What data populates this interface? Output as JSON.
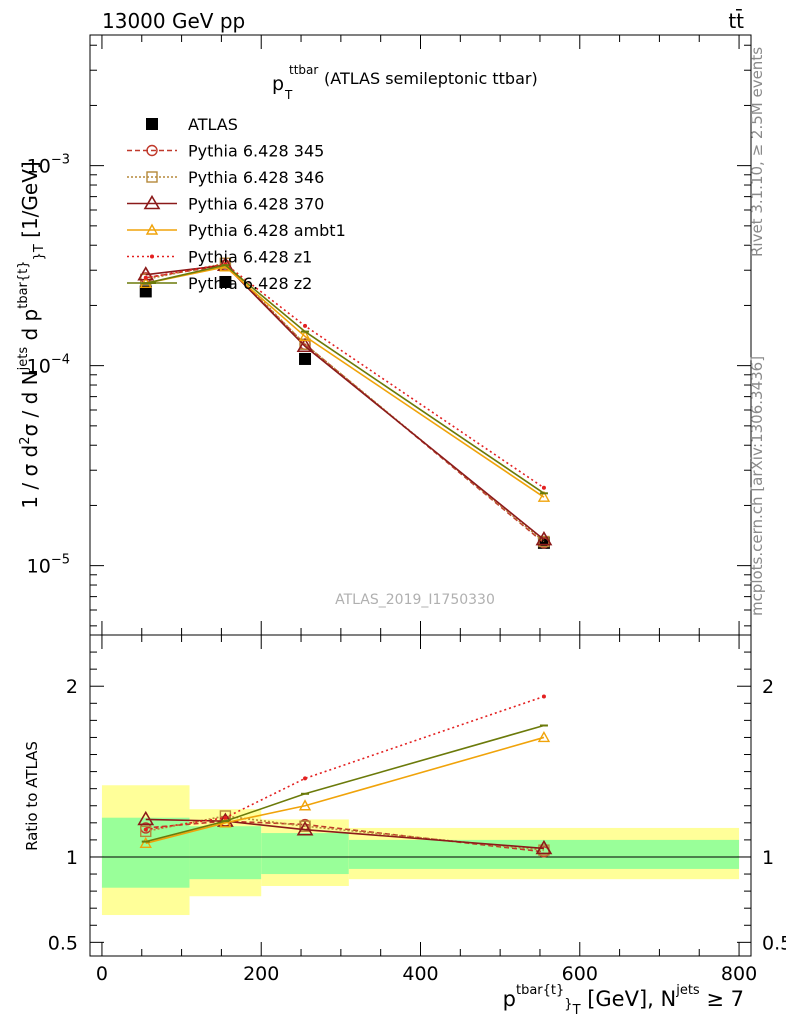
{
  "header": {
    "left": "13000 GeV pp",
    "right": "tt̄"
  },
  "side_labels": {
    "rivet": "Rivet 3.1.10, ≥ 2.5M events",
    "mcplots": "mcplots.cern.ch [arXiv:1306.3436]"
  },
  "watermark": "ATLAS_2019_I1750330",
  "colors": {
    "data": "#000000",
    "p345": "#c0392b",
    "p346": "#b5893a",
    "p370": "#8b1a1a",
    "ambt1": "#f0a30a",
    "z1": "#e32020",
    "z2": "#6b7a0a",
    "band_stat": "#99ff99",
    "band_total": "#ffff99"
  },
  "chart_data": [
    {
      "type": "line",
      "panel": "main",
      "title_main": "p",
      "title_sup": "ttbar",
      "title_sub": "T",
      "title_rest": "(ATLAS semileptonic ttbar)",
      "ylabel": "1 / σ d²σ / d N^jets d p^tbar{t}_T [1/GeV]",
      "yscale": "log",
      "ylim": [
        4.5e-06,
        0.0045
      ],
      "xlim": [
        -15,
        815
      ],
      "yticks": [
        {
          "value": 1e-05,
          "base": "10",
          "exp": "−5"
        },
        {
          "value": 0.0001,
          "base": "10",
          "exp": "−4"
        },
        {
          "value": 0.001,
          "base": "10",
          "exp": "−3"
        }
      ],
      "x": [
        55,
        155,
        255,
        555
      ],
      "series": [
        {
          "name": "ATLAS",
          "color_key": "data",
          "values": [
            0.000235,
            0.000262,
            0.000108,
            1.3e-05
          ]
        },
        {
          "name": "Pythia 6.428 345",
          "color_key": "p345",
          "values": [
            0.000275,
            0.000318,
            0.000128,
            1.3e-05
          ]
        },
        {
          "name": "Pythia 6.428 346",
          "color_key": "p346",
          "values": [
            0.00027,
            0.000325,
            0.000128,
            1.32e-05
          ]
        },
        {
          "name": "Pythia 6.428 370",
          "color_key": "p370",
          "values": [
            0.000285,
            0.000318,
            0.000125,
            1.35e-05
          ]
        },
        {
          "name": "Pythia 6.428 ambt1",
          "color_key": "ambt1",
          "values": [
            0.000258,
            0.000312,
            0.00014,
            2.2e-05
          ]
        },
        {
          "name": "Pythia 6.428 z1",
          "color_key": "z1",
          "values": [
            0.000275,
            0.000322,
            0.000158,
            2.45e-05
          ]
        },
        {
          "name": "Pythia 6.428 z2",
          "color_key": "z2",
          "values": [
            0.000258,
            0.000318,
            0.000148,
            2.3e-05
          ]
        }
      ]
    },
    {
      "type": "line",
      "panel": "ratio",
      "ylabel": "Ratio to ATLAS",
      "xlabel": "p^tbar{t}_T [GeV], N^jets ≥ 7",
      "ylim": [
        0.42,
        2.3
      ],
      "xlim": [
        -15,
        815
      ],
      "yticks": [
        0.5,
        1,
        2
      ],
      "xticks": [
        0,
        200,
        400,
        600,
        800
      ],
      "bands": [
        {
          "x0": 0,
          "x1": 110,
          "stat": [
            0.82,
            1.23
          ],
          "total": [
            0.66,
            1.42
          ]
        },
        {
          "x0": 110,
          "x1": 200,
          "stat": [
            0.87,
            1.18
          ],
          "total": [
            0.77,
            1.28
          ]
        },
        {
          "x0": 200,
          "x1": 310,
          "stat": [
            0.9,
            1.14
          ],
          "total": [
            0.83,
            1.22
          ]
        },
        {
          "x0": 310,
          "x1": 800,
          "stat": [
            0.93,
            1.1
          ],
          "total": [
            0.87,
            1.17
          ]
        }
      ],
      "x": [
        55,
        155,
        255,
        555
      ],
      "series": [
        {
          "name": "Pythia 6.428 345",
          "color_key": "p345",
          "values": [
            1.17,
            1.21,
            1.19,
            1.03
          ]
        },
        {
          "name": "Pythia 6.428 346",
          "color_key": "p346",
          "values": [
            1.15,
            1.24,
            1.18,
            1.04
          ]
        },
        {
          "name": "Pythia 6.428 370",
          "color_key": "p370",
          "values": [
            1.22,
            1.21,
            1.16,
            1.05
          ]
        },
        {
          "name": "Pythia 6.428 ambt1",
          "color_key": "ambt1",
          "values": [
            1.08,
            1.2,
            1.3,
            1.7
          ]
        },
        {
          "name": "Pythia 6.428 z1",
          "color_key": "z1",
          "values": [
            1.16,
            1.23,
            1.46,
            1.94
          ]
        },
        {
          "name": "Pythia 6.428 z2",
          "color_key": "z2",
          "values": [
            1.09,
            1.21,
            1.37,
            1.77
          ]
        }
      ]
    }
  ]
}
